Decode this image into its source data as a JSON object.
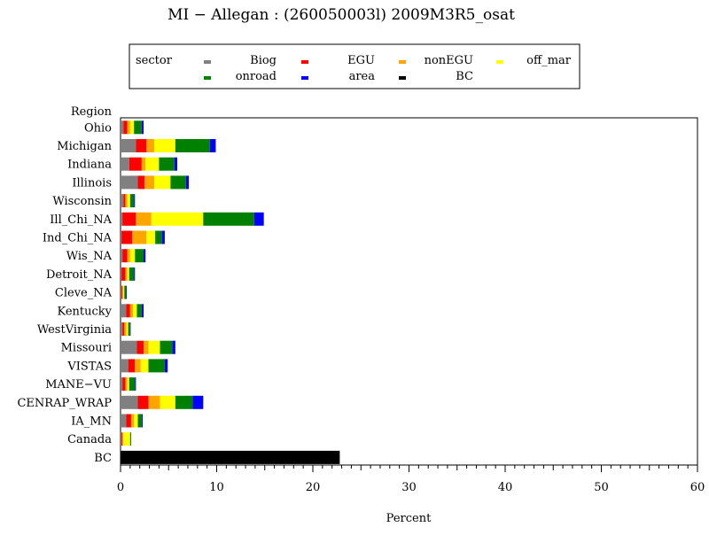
{
  "chart_data": {
    "type": "bar",
    "orientation": "horizontal",
    "stacked": true,
    "title": "MI − Allegan : (260050003l) 2009M3R5_osat",
    "xlabel": "Percent",
    "ylabel": "Region",
    "xlim": [
      0,
      60
    ],
    "xticks": [
      0,
      10,
      20,
      30,
      40,
      50,
      60
    ],
    "grid": false,
    "legend": {
      "title": "sector",
      "placement": "top",
      "entries": [
        {
          "name": "Biog",
          "color": "#808080"
        },
        {
          "name": "EGU",
          "color": "#ff0000"
        },
        {
          "name": "nonEGU",
          "color": "#ffa500"
        },
        {
          "name": "off_mar",
          "color": "#ffff00"
        },
        {
          "name": "onroad",
          "color": "#008000"
        },
        {
          "name": "area",
          "color": "#0000ff"
        },
        {
          "name": "BC",
          "color": "#000000"
        }
      ]
    },
    "categories": [
      "Ohio",
      "Michigan",
      "Indiana",
      "Illinois",
      "Wisconsin",
      "Ill_Chi_NA",
      "Ind_Chi_NA",
      "Wis_NA",
      "Detroit_NA",
      "Cleve_NA",
      "Kentucky",
      "WestVirginia",
      "Missouri",
      "VISTAS",
      "MANE−VU",
      "CENRAP_WRAP",
      "IA_MN",
      "Canada",
      "BC"
    ],
    "series": [
      {
        "name": "Biog",
        "color": "#808080",
        "values": [
          0.3,
          1.6,
          0.9,
          1.8,
          0.3,
          0.2,
          0.1,
          0.2,
          0.1,
          0.1,
          0.6,
          0.2,
          1.7,
          0.8,
          0.2,
          1.8,
          0.6,
          0.1,
          0
        ]
      },
      {
        "name": "EGU",
        "color": "#ff0000",
        "values": [
          0.4,
          1.1,
          1.3,
          0.7,
          0.2,
          1.4,
          1.1,
          0.5,
          0.4,
          0.1,
          0.4,
          0.2,
          0.7,
          0.7,
          0.3,
          1.1,
          0.5,
          0.1,
          0
        ]
      },
      {
        "name": "nonEGU",
        "color": "#ffa500",
        "values": [
          0.3,
          0.8,
          0.4,
          1.0,
          0.2,
          1.6,
          1.5,
          0.3,
          0.2,
          0.1,
          0.3,
          0.2,
          0.5,
          0.6,
          0.2,
          1.2,
          0.3,
          0.1,
          0
        ]
      },
      {
        "name": "off_mar",
        "color": "#ffff00",
        "values": [
          0.4,
          2.2,
          1.4,
          1.7,
          0.3,
          5.4,
          0.9,
          0.5,
          0.2,
          0.1,
          0.4,
          0.2,
          1.2,
          0.8,
          0.2,
          1.6,
          0.4,
          0.7,
          0
        ]
      },
      {
        "name": "onroad",
        "color": "#008000",
        "values": [
          0.8,
          3.6,
          1.6,
          1.6,
          0.4,
          5.3,
          0.7,
          0.9,
          0.5,
          0.2,
          0.5,
          0.2,
          1.3,
          1.7,
          0.6,
          1.8,
          0.4,
          0.1,
          0
        ]
      },
      {
        "name": "area",
        "color": "#0000ff",
        "values": [
          0.2,
          0.6,
          0.3,
          0.3,
          0.1,
          1.0,
          0.3,
          0.2,
          0.1,
          0.05,
          0.2,
          0.05,
          0.3,
          0.3,
          0.1,
          1.1,
          0.1,
          0,
          0
        ]
      },
      {
        "name": "BC",
        "color": "#000000",
        "values": [
          0,
          0,
          0,
          0,
          0,
          0,
          0,
          0,
          0,
          0,
          0,
          0,
          0,
          0,
          0,
          0,
          0,
          0,
          22.8
        ]
      }
    ]
  }
}
